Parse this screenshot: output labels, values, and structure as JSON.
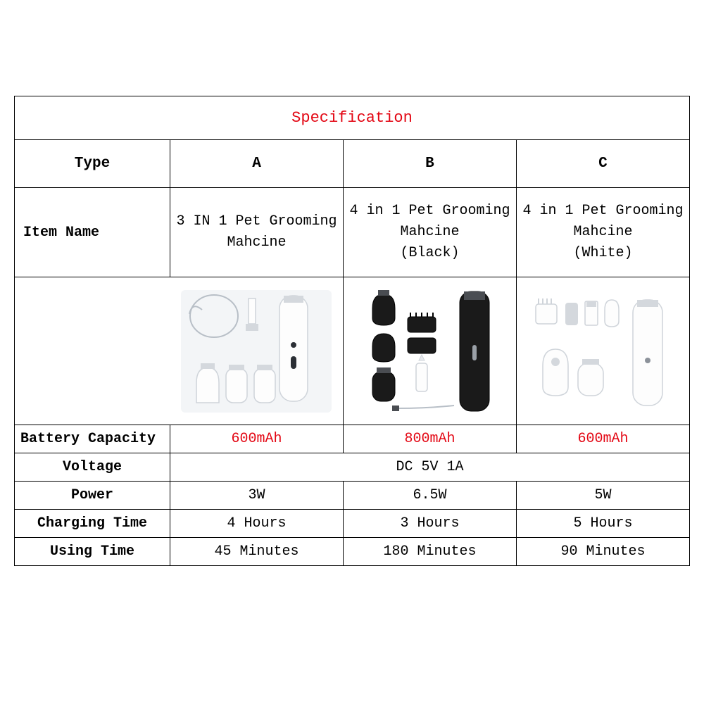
{
  "title": "Specification",
  "title_color": "#e30613",
  "table": {
    "border_color": "#000000",
    "background_color": "#ffffff",
    "font_family": "Courier New",
    "base_fontsize": 20,
    "label_column_width_pct": 23,
    "data_column_width_pct": 25.6
  },
  "headers": {
    "type": "Type",
    "a": "A",
    "b": "B",
    "c": "C"
  },
  "rows": {
    "item_name": {
      "label": "Item Name",
      "a": "3 IN 1 Pet Grooming Mahcine",
      "b": "4 in 1 Pet Grooming Mahcine\n(Black)",
      "c": "4 in 1 Pet Grooming Mahcine\n(White)"
    },
    "battery_capacity": {
      "label": "Battery Capacity",
      "a": "600mAh",
      "b": "800mAh",
      "c": "600mAh",
      "value_color": "#e30613"
    },
    "voltage": {
      "label": "Voltage",
      "span_value": "DC 5V 1A"
    },
    "power": {
      "label": "Power",
      "a": "3W",
      "b": "6.5W",
      "c": "5W"
    },
    "charging_time": {
      "label": "Charging Time",
      "a": "4 Hours",
      "b": "3 Hours",
      "c": "5 Hours"
    },
    "using_time": {
      "label": "Using Time",
      "a": "45 Minutes",
      "b": "180 Minutes",
      "c": "90 Minutes"
    }
  },
  "product_thumbs": {
    "a": {
      "theme": "white",
      "pieces": 5
    },
    "b": {
      "theme": "black",
      "pieces": 8
    },
    "c": {
      "theme": "white",
      "pieces": 6
    }
  }
}
